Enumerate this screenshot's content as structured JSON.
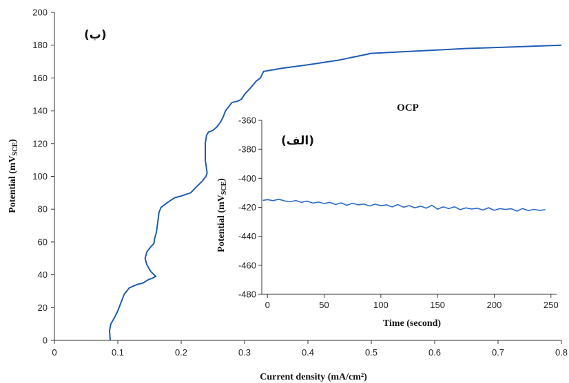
{
  "chart_data": [
    {
      "id": "main",
      "type": "line",
      "panel_label": "(ب)",
      "xlabel": "Current density (mA/cm²)",
      "ylabel_main": "Potential (mV",
      "ylabel_sub": "SCE",
      "ylabel_close": ")",
      "xlim": [
        0,
        0.8
      ],
      "ylim": [
        0,
        200
      ],
      "xticks": [
        "0",
        "0.1",
        "0.2",
        "0.3",
        "0.4",
        "0.5",
        "0.6",
        "0.7",
        "0.8"
      ],
      "yticks": [
        "0",
        "20",
        "40",
        "60",
        "80",
        "100",
        "120",
        "140",
        "160",
        "180",
        "200"
      ],
      "grid": false,
      "series": [
        {
          "color": "#1f5bb5",
          "x": [
            0.088,
            0.087,
            0.089,
            0.095,
            0.1,
            0.104,
            0.11,
            0.118,
            0.13,
            0.14,
            0.148,
            0.155,
            0.16,
            0.152,
            0.146,
            0.143,
            0.146,
            0.152,
            0.157,
            0.158,
            0.161,
            0.163,
            0.165,
            0.168,
            0.178,
            0.19,
            0.2,
            0.215,
            0.225,
            0.233,
            0.239,
            0.241,
            0.238,
            0.238,
            0.24,
            0.243,
            0.25,
            0.256,
            0.262,
            0.266,
            0.27,
            0.28,
            0.29,
            0.295,
            0.3,
            0.312,
            0.318,
            0.325,
            0.33,
            0.36,
            0.4,
            0.45,
            0.5,
            0.55,
            0.6,
            0.65,
            0.7,
            0.75,
            0.8
          ],
          "y": [
            0,
            6,
            10,
            14,
            18,
            22,
            28,
            32,
            34,
            35,
            37,
            38,
            39,
            42,
            46,
            50,
            54,
            57,
            59,
            62,
            66,
            72,
            78,
            81,
            84,
            87,
            88,
            90,
            94,
            97,
            100,
            102,
            110,
            120,
            125,
            127,
            128,
            130,
            133,
            136,
            140,
            145,
            146,
            147,
            150,
            155,
            158,
            160,
            164,
            166,
            168,
            171,
            175,
            176,
            177,
            178,
            178.6,
            179.3,
            180
          ]
        }
      ]
    },
    {
      "id": "inset",
      "type": "line",
      "title": "OCP",
      "panel_label": "(الف)",
      "xlabel": "Time (second)",
      "ylabel_main": "Potential (mV",
      "ylabel_sub": "SCE",
      "ylabel_close": ")",
      "xlim": [
        -5,
        255
      ],
      "ylim": [
        -480,
        -360
      ],
      "xticks": [
        "0",
        "50",
        "100",
        "150",
        "200",
        "250"
      ],
      "yticks": [
        "-360",
        "-380",
        "-400",
        "-420",
        "-440",
        "-460",
        "-480"
      ],
      "grid": false,
      "series": [
        {
          "color": "#2b68c8",
          "x": [
            -4,
            0,
            5,
            10,
            15,
            20,
            25,
            30,
            35,
            40,
            45,
            50,
            55,
            60,
            65,
            70,
            75,
            80,
            85,
            90,
            95,
            100,
            105,
            110,
            115,
            120,
            125,
            130,
            135,
            140,
            145,
            150,
            155,
            160,
            165,
            170,
            175,
            180,
            185,
            190,
            195,
            200,
            205,
            210,
            215,
            220,
            225,
            230,
            235,
            240,
            245
          ],
          "y": [
            -415.2,
            -414.7,
            -415.4,
            -414.4,
            -415.6,
            -416.2,
            -415.3,
            -416.6,
            -415.7,
            -417.1,
            -416.4,
            -417.4,
            -416.6,
            -418.1,
            -416.9,
            -418.6,
            -417.2,
            -418.3,
            -417.7,
            -419.1,
            -417.8,
            -418.9,
            -418.3,
            -419.7,
            -418.1,
            -419.9,
            -418.8,
            -420.4,
            -419.2,
            -420.6,
            -418.6,
            -421.3,
            -419.7,
            -420.9,
            -419.6,
            -421.6,
            -420.4,
            -421.2,
            -420.6,
            -421.9,
            -420.3,
            -422.1,
            -420.9,
            -421.4,
            -421.0,
            -422.6,
            -420.8,
            -422.3,
            -421.4,
            -422.1,
            -421.6
          ]
        }
      ]
    }
  ]
}
